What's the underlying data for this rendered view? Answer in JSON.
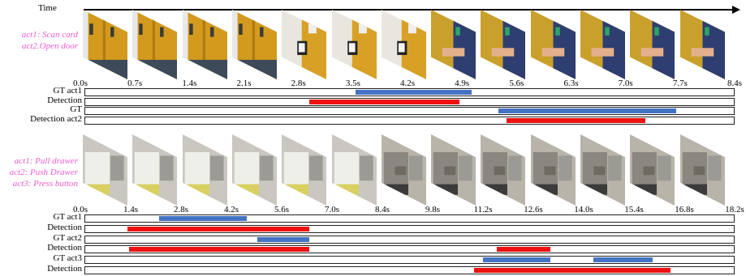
{
  "time_label": "Time",
  "colors": {
    "gt": "#4472c4",
    "detection": "#ee1111",
    "act_label": "#f05bd0"
  },
  "panels": [
    {
      "id": "panel1",
      "act_labels": [
        "act1: Scan card",
        "act2.Open door"
      ],
      "frame_style": "door",
      "frame_count": 13,
      "ticks": [
        "0.0s",
        "0.7s",
        "1.4s",
        "2.1s",
        "2.8s",
        "3.5s",
        "4.2s",
        "4.9s",
        "5.6s",
        "6.3s",
        "7.0s",
        "7.7s",
        "8.4s"
      ],
      "t_max": 8.4,
      "rows": [
        {
          "label": "GT act1",
          "kind": "gt",
          "segments": [
            [
              3.5,
              5.0
            ]
          ]
        },
        {
          "label": "Detection",
          "kind": "detection",
          "segments": [
            [
              2.9,
              4.85
            ]
          ]
        },
        {
          "label": "GT",
          "kind": "gt",
          "segments": [
            [
              5.35,
              7.65
            ]
          ]
        },
        {
          "label": "Detection act2",
          "kind": "detection",
          "segments": [
            [
              5.45,
              7.25
            ]
          ]
        }
      ]
    },
    {
      "id": "panel2",
      "act_labels": [
        "act1: Pull drawer",
        "act2: Push Drawer",
        "act3: Press button"
      ],
      "frame_style": "printer",
      "frame_count": 13,
      "ticks": [
        "0.0s",
        "1.4s",
        "2.8s",
        "4.2s",
        "5.6s",
        "7.0s",
        "8.4s",
        "9.8s",
        "11.2s",
        "12.6s",
        "14.0s",
        "15.4s",
        "16.8s",
        "18.2s"
      ],
      "t_max": 18.2,
      "rows": [
        {
          "label": "GT act1",
          "kind": "gt",
          "segments": [
            [
              2.1,
              4.55
            ]
          ]
        },
        {
          "label": "Detection",
          "kind": "detection",
          "segments": [
            [
              1.2,
              6.3
            ]
          ]
        },
        {
          "label": "GT act2",
          "kind": "gt",
          "segments": [
            [
              4.85,
              6.3
            ]
          ]
        },
        {
          "label": "Detection",
          "kind": "detection",
          "segments": [
            [
              1.25,
              6.3
            ],
            [
              11.55,
              13.05
            ]
          ]
        },
        {
          "label": "GT act3",
          "kind": "gt",
          "segments": [
            [
              11.15,
              13.05
            ],
            [
              14.25,
              15.9
            ]
          ]
        },
        {
          "label": "Detection",
          "kind": "detection",
          "segments": [
            [
              10.9,
              16.4
            ]
          ]
        }
      ]
    }
  ]
}
